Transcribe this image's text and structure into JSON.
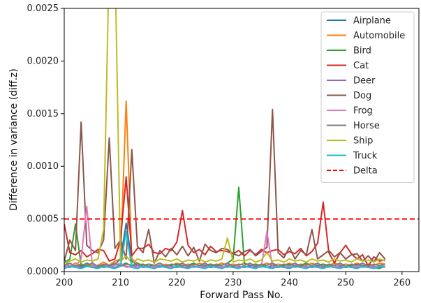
{
  "chart_data": {
    "type": "line",
    "xlabel": "Forward Pass No.",
    "ylabel": "Difference in variance (diff.z)",
    "xlim": [
      200,
      263
    ],
    "ylim": [
      0,
      0.0025
    ],
    "xticks": [
      200,
      210,
      220,
      230,
      240,
      250,
      260
    ],
    "xtick_labels": [
      "200",
      "210",
      "220",
      "230",
      "240",
      "250",
      "260"
    ],
    "yticks": [
      0,
      0.0005,
      0.001,
      0.0015,
      0.002,
      0.0025
    ],
    "ytick_labels": [
      "0.0000",
      "0.0005",
      "0.0010",
      "0.0015",
      "0.0020",
      "0.0025"
    ],
    "grid": false,
    "legend_position": "top-right",
    "x": [
      200,
      201,
      202,
      203,
      204,
      205,
      206,
      207,
      208,
      209,
      210,
      211,
      212,
      213,
      214,
      215,
      216,
      217,
      218,
      219,
      220,
      221,
      222,
      223,
      224,
      225,
      226,
      227,
      228,
      229,
      230,
      231,
      232,
      233,
      234,
      235,
      236,
      237,
      238,
      239,
      240,
      241,
      242,
      243,
      244,
      245,
      246,
      247,
      248,
      249,
      250,
      251,
      252,
      253,
      254,
      255,
      256,
      257
    ],
    "series": [
      {
        "name": "Airplane",
        "color": "#1f77b4",
        "values": [
          0.00012,
          4e-05,
          6e-05,
          5e-05,
          8e-05,
          5e-05,
          4e-05,
          6e-05,
          5e-05,
          7e-05,
          0.00012,
          0.00046,
          0.0001,
          6e-05,
          5e-05,
          4e-05,
          5e-05,
          4e-05,
          6e-05,
          5e-05,
          4e-05,
          5e-05,
          4e-05,
          5e-05,
          4e-05,
          5e-05,
          4e-05,
          5e-05,
          4e-05,
          5e-05,
          4e-05,
          5e-05,
          4e-05,
          5e-05,
          4e-05,
          5e-05,
          4e-05,
          5e-05,
          4e-05,
          5e-05,
          4e-05,
          5e-05,
          4e-05,
          5e-05,
          4e-05,
          5e-05,
          4e-05,
          5e-05,
          4e-05,
          5e-05,
          4e-05,
          5e-05,
          4e-05,
          5e-05,
          4e-05,
          5e-05,
          4e-05,
          5e-05
        ]
      },
      {
        "name": "Automobile",
        "color": "#ff7f0e",
        "values": [
          6e-05,
          5e-05,
          8e-05,
          6e-05,
          7e-05,
          5e-05,
          6e-05,
          9e-05,
          6e-05,
          0.0001,
          0.00012,
          0.00162,
          0.00012,
          8e-05,
          6e-05,
          7e-05,
          6e-05,
          5e-05,
          7e-05,
          6e-05,
          8e-05,
          6e-05,
          7e-05,
          6e-05,
          8e-05,
          6e-05,
          7e-05,
          6e-05,
          8e-05,
          6e-05,
          7e-05,
          6e-05,
          8e-05,
          6e-05,
          7e-05,
          6e-05,
          8e-05,
          6e-05,
          7e-05,
          6e-05,
          8e-05,
          6e-05,
          7e-05,
          6e-05,
          8e-05,
          6e-05,
          7e-05,
          6e-05,
          8e-05,
          6e-05,
          7e-05,
          6e-05,
          8e-05,
          6e-05,
          7e-05,
          6e-05,
          8e-05,
          7e-05
        ]
      },
      {
        "name": "Bird",
        "color": "#2ca02c",
        "values": [
          8e-05,
          0.00012,
          0.00045,
          6e-05,
          5e-05,
          8e-05,
          4e-05,
          6e-05,
          5e-05,
          7e-05,
          6e-05,
          8e-05,
          5e-05,
          6e-05,
          7e-05,
          5e-05,
          6e-05,
          8e-05,
          5e-05,
          6e-05,
          7e-05,
          5e-05,
          6e-05,
          8e-05,
          5e-05,
          6e-05,
          7e-05,
          5e-05,
          6e-05,
          8e-05,
          0.00012,
          0.0008,
          8e-05,
          6e-05,
          7e-05,
          5e-05,
          6e-05,
          8e-05,
          5e-05,
          6e-05,
          7e-05,
          5e-05,
          6e-05,
          8e-05,
          5e-05,
          6e-05,
          7e-05,
          5e-05,
          6e-05,
          8e-05,
          5e-05,
          6e-05,
          7e-05,
          5e-05,
          6e-05,
          4e-05,
          3e-05,
          5e-05
        ]
      },
      {
        "name": "Cat",
        "color": "#d62728",
        "values": [
          0.00045,
          0.00018,
          0.00016,
          0.0002,
          0.00014,
          0.00017,
          0.00021,
          0.0002,
          0.0001,
          0.00012,
          0.0003,
          0.0009,
          0.00015,
          0.00022,
          0.00022,
          0.00026,
          0.00018,
          0.00017,
          0.00022,
          0.0002,
          0.00028,
          0.00058,
          0.00025,
          0.00018,
          0.00021,
          0.00016,
          0.00024,
          0.00019,
          0.0002,
          0.00019,
          0.00017,
          0.0002,
          0.00015,
          0.0002,
          0.00016,
          0.00021,
          0.00018,
          0.0002,
          0.00021,
          0.00016,
          0.00019,
          0.00017,
          0.00022,
          0.00015,
          0.00019,
          0.00027,
          0.00066,
          0.00018,
          8e-05,
          0.00018,
          0.00025,
          0.00017,
          0.00012,
          0.00016,
          5e-05,
          0.00014,
          0.0001,
          0.00011
        ]
      },
      {
        "name": "Deer",
        "color": "#9467bd",
        "values": [
          5e-05,
          4e-05,
          6e-05,
          4e-05,
          5e-05,
          4e-05,
          6e-05,
          4e-05,
          5e-05,
          4e-05,
          6e-05,
          5e-05,
          4e-05,
          6e-05,
          4e-05,
          5e-05,
          4e-05,
          6e-05,
          4e-05,
          5e-05,
          4e-05,
          6e-05,
          4e-05,
          5e-05,
          4e-05,
          6e-05,
          4e-05,
          5e-05,
          4e-05,
          6e-05,
          4e-05,
          5e-05,
          4e-05,
          6e-05,
          4e-05,
          5e-05,
          4e-05,
          6e-05,
          4e-05,
          5e-05,
          4e-05,
          6e-05,
          4e-05,
          5e-05,
          4e-05,
          6e-05,
          4e-05,
          5e-05,
          4e-05,
          6e-05,
          4e-05,
          5e-05,
          4e-05,
          6e-05,
          4e-05,
          5e-05,
          4e-05,
          5e-05
        ]
      },
      {
        "name": "Dog",
        "color": "#8c564b",
        "values": [
          0.0001,
          0.0003,
          0.0002,
          0.00142,
          0.00025,
          0.0002,
          0.00018,
          0.0003,
          0.00127,
          0.00022,
          0.0003,
          0.00012,
          0.00116,
          0.00024,
          0.00018,
          0.0004,
          8e-05,
          0.0002,
          0.00014,
          0.00022,
          0.00016,
          0.00024,
          0.00015,
          0.00023,
          0.0001,
          0.00026,
          0.0002,
          0.00018,
          0.00022,
          0.00021,
          0.00017,
          0.00015,
          0.00019,
          0.00021,
          0.00015,
          0.00019,
          0.00023,
          0.00154,
          0.00018,
          0.00013,
          0.00023,
          0.00012,
          0.0002,
          0.00016,
          0.0004,
          0.00012,
          0.00016,
          0.0002,
          0.00014,
          0.00018,
          0.00012,
          0.00016,
          0.00017,
          0.0001,
          0.00015,
          9e-05,
          0.00018,
          0.00012
        ]
      },
      {
        "name": "Frog",
        "color": "#e377c2",
        "values": [
          4e-05,
          6e-05,
          5e-05,
          0.00012,
          0.00062,
          6e-05,
          5e-05,
          7e-05,
          4e-05,
          6e-05,
          8e-05,
          4e-05,
          5e-05,
          4e-05,
          6e-05,
          4e-05,
          5e-05,
          4e-05,
          6e-05,
          4e-05,
          5e-05,
          4e-05,
          6e-05,
          4e-05,
          5e-05,
          4e-05,
          6e-05,
          4e-05,
          5e-05,
          4e-05,
          6e-05,
          4e-05,
          5e-05,
          4e-05,
          6e-05,
          4e-05,
          0.00038,
          4e-05,
          5e-05,
          4e-05,
          6e-05,
          4e-05,
          5e-05,
          4e-05,
          6e-05,
          4e-05,
          5e-05,
          4e-05,
          6e-05,
          4e-05,
          5e-05,
          4e-05,
          6e-05,
          4e-05,
          5e-05,
          4e-05,
          6e-05,
          5e-05
        ]
      },
      {
        "name": "Horse",
        "color": "#7f7f7f",
        "values": [
          6e-05,
          8e-05,
          5e-05,
          7e-05,
          6e-05,
          8e-05,
          5e-05,
          7e-05,
          6e-05,
          8e-05,
          5e-05,
          7e-05,
          6e-05,
          8e-05,
          5e-05,
          7e-05,
          6e-05,
          8e-05,
          5e-05,
          7e-05,
          6e-05,
          8e-05,
          5e-05,
          7e-05,
          6e-05,
          8e-05,
          5e-05,
          7e-05,
          6e-05,
          8e-05,
          5e-05,
          7e-05,
          6e-05,
          8e-05,
          5e-05,
          7e-05,
          6e-05,
          8e-05,
          5e-05,
          7e-05,
          6e-05,
          8e-05,
          5e-05,
          7e-05,
          6e-05,
          8e-05,
          5e-05,
          7e-05,
          6e-05,
          8e-05,
          5e-05,
          7e-05,
          6e-05,
          8e-05,
          5e-05,
          7e-05,
          6e-05,
          7e-05
        ]
      },
      {
        "name": "Ship",
        "color": "#bcbd22",
        "values": [
          8e-05,
          0.0001,
          0.00012,
          9e-05,
          0.00011,
          0.0001,
          0.00012,
          0.0004,
          0.003,
          0.003,
          0.0001,
          0.00015,
          8e-05,
          0.00012,
          0.0001,
          0.00011,
          9e-05,
          0.00012,
          0.00011,
          0.0001,
          0.00012,
          9e-05,
          0.00011,
          0.0001,
          0.00012,
          9e-05,
          0.00011,
          0.0001,
          0.00012,
          0.00032,
          9e-05,
          0.00011,
          0.0001,
          0.00012,
          9e-05,
          0.00011,
          0.00018,
          0.0001,
          0.00011,
          9e-05,
          0.00012,
          0.0001,
          0.00011,
          9e-05,
          0.00012,
          0.0001,
          0.00011,
          9e-05,
          0.00012,
          0.0001,
          0.00011,
          9e-05,
          0.00012,
          0.0001,
          0.00011,
          9e-05,
          0.00012,
          0.0001
        ]
      },
      {
        "name": "Truck",
        "color": "#17becf",
        "values": [
          3e-05,
          5e-05,
          4e-05,
          3e-05,
          5e-05,
          4e-05,
          3e-05,
          5e-05,
          4e-05,
          3e-05,
          5e-05,
          0.00038,
          4e-05,
          3e-05,
          5e-05,
          4e-05,
          3e-05,
          5e-05,
          4e-05,
          3e-05,
          5e-05,
          4e-05,
          3e-05,
          5e-05,
          4e-05,
          3e-05,
          5e-05,
          4e-05,
          3e-05,
          5e-05,
          4e-05,
          3e-05,
          5e-05,
          4e-05,
          3e-05,
          5e-05,
          4e-05,
          3e-05,
          5e-05,
          4e-05,
          3e-05,
          5e-05,
          4e-05,
          3e-05,
          5e-05,
          4e-05,
          3e-05,
          5e-05,
          4e-05,
          3e-05,
          5e-05,
          4e-05,
          3e-05,
          5e-05,
          4e-05,
          3e-05,
          5e-05,
          4e-05
        ]
      }
    ],
    "reference_lines": [
      {
        "name": "Delta",
        "y": 0.0005,
        "color": "#ff0000",
        "style": "dashed"
      }
    ]
  }
}
